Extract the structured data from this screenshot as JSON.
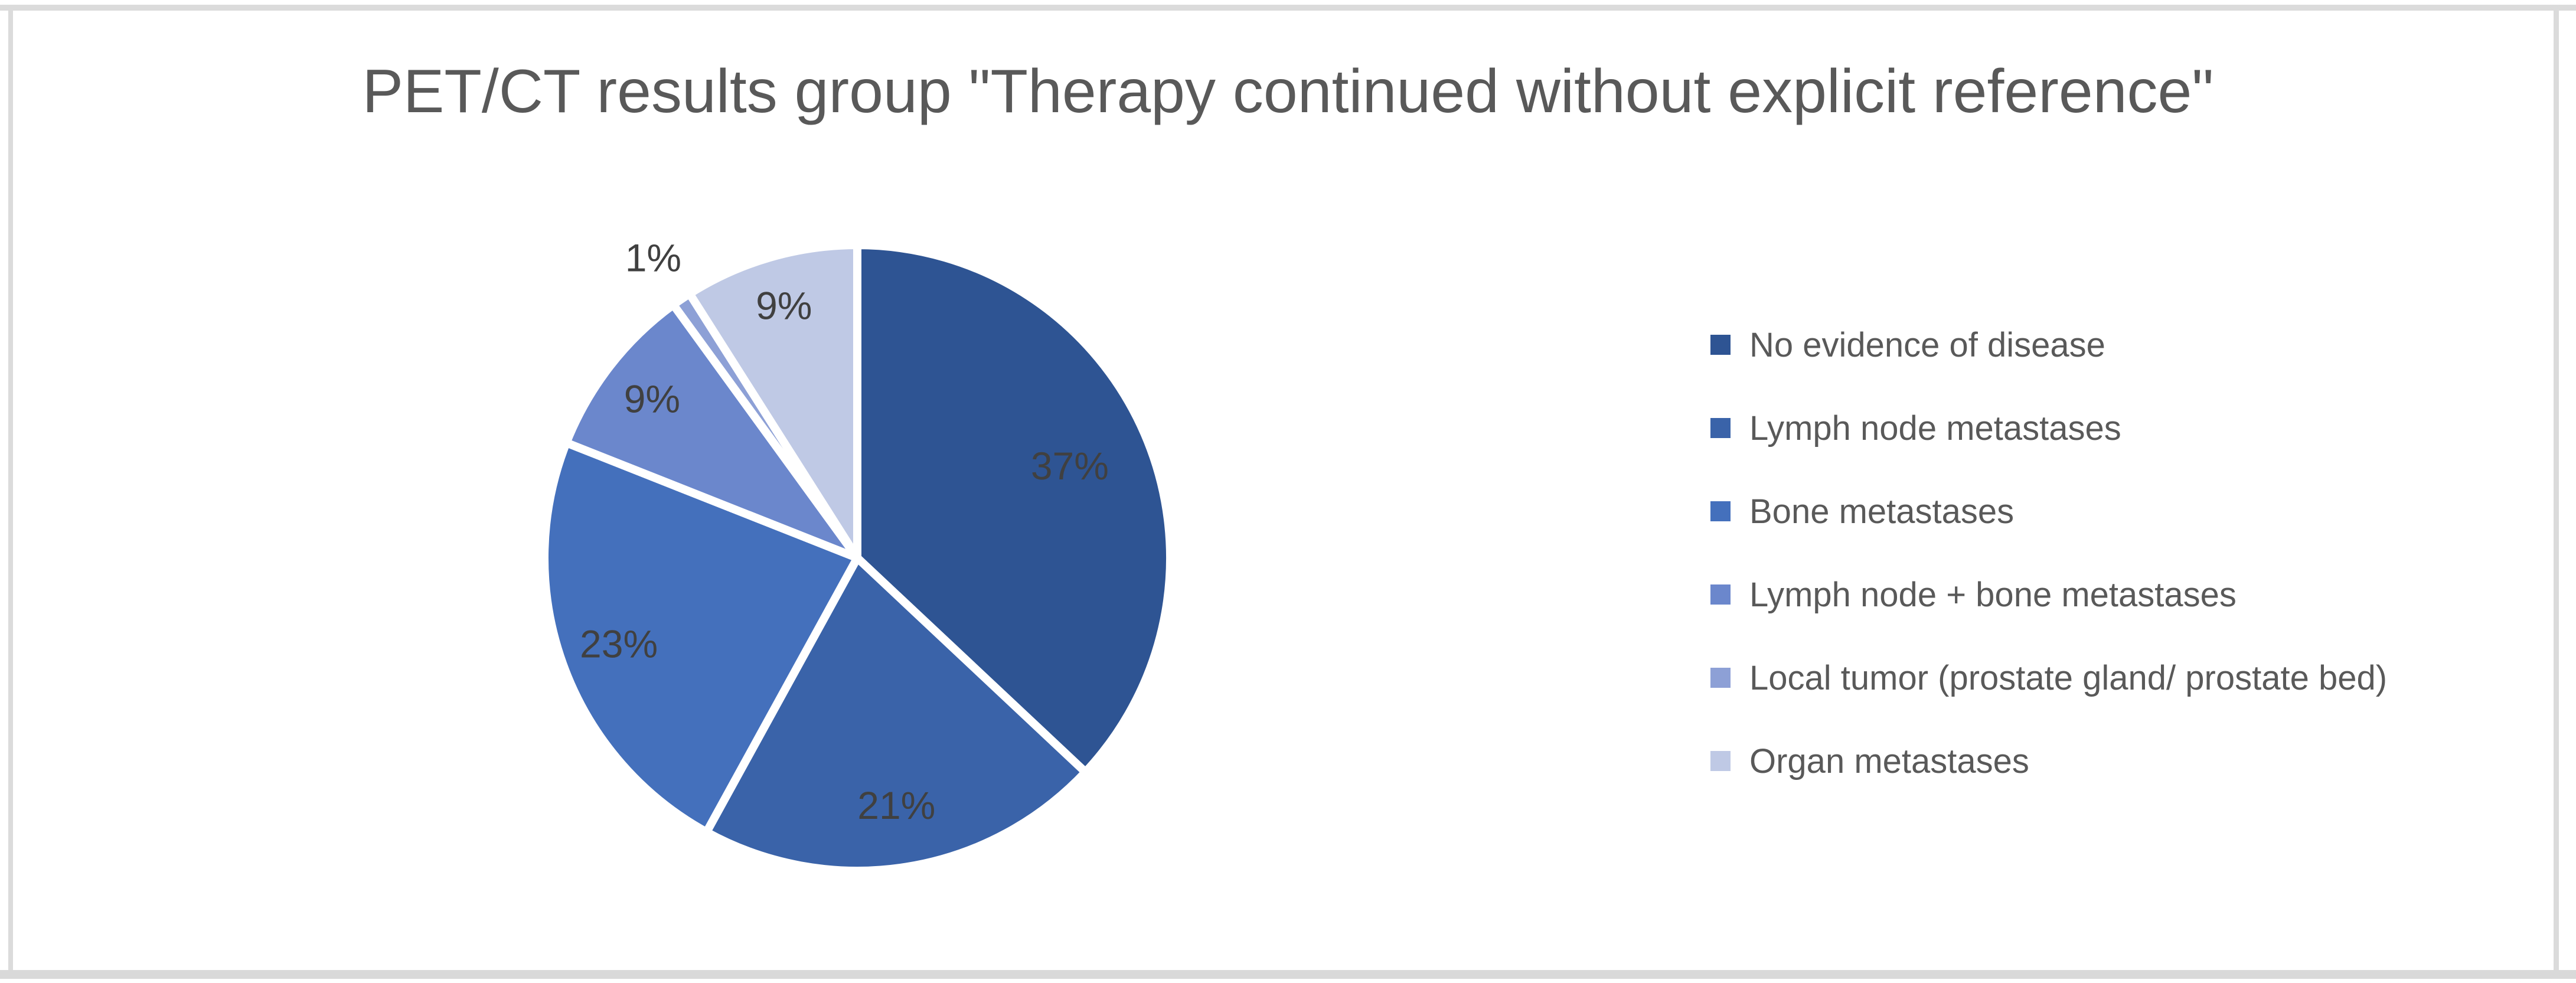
{
  "figure": {
    "background": "#FFFFFF",
    "border_color": "#D9D9D9"
  },
  "chart_data": {
    "type": "pie",
    "title": "PET/CT results group \"Therapy continued without explicit reference\"",
    "title_color": "#595959",
    "categories": [
      "No evidence of disease",
      "Lymph node metastases",
      "Bone metastases",
      "Lymph node + bone metastases",
      "Local tumor (prostate gland/ prostate bed)",
      "Organ metastases"
    ],
    "values": [
      37,
      21,
      23,
      9,
      1,
      9
    ],
    "unit": "%",
    "slice_labels": [
      "37%",
      "21%",
      "23%",
      "9%",
      "1%",
      "9%"
    ],
    "colors": [
      "#2E5493",
      "#3A63A9",
      "#4470BC",
      "#6B87CC",
      "#8DA0D6",
      "#BFC9E5"
    ],
    "slice_border_color": "#FFFFFF",
    "data_label_color": "#404040",
    "data_label_font_size": 66,
    "legend_position": "right",
    "legend_text_color": "#595959",
    "start_angle_deg": 0,
    "direction": "clockwise",
    "label_radius": [
      0.74,
      0.8,
      0.81,
      0.83,
      1.16,
      0.84
    ]
  }
}
